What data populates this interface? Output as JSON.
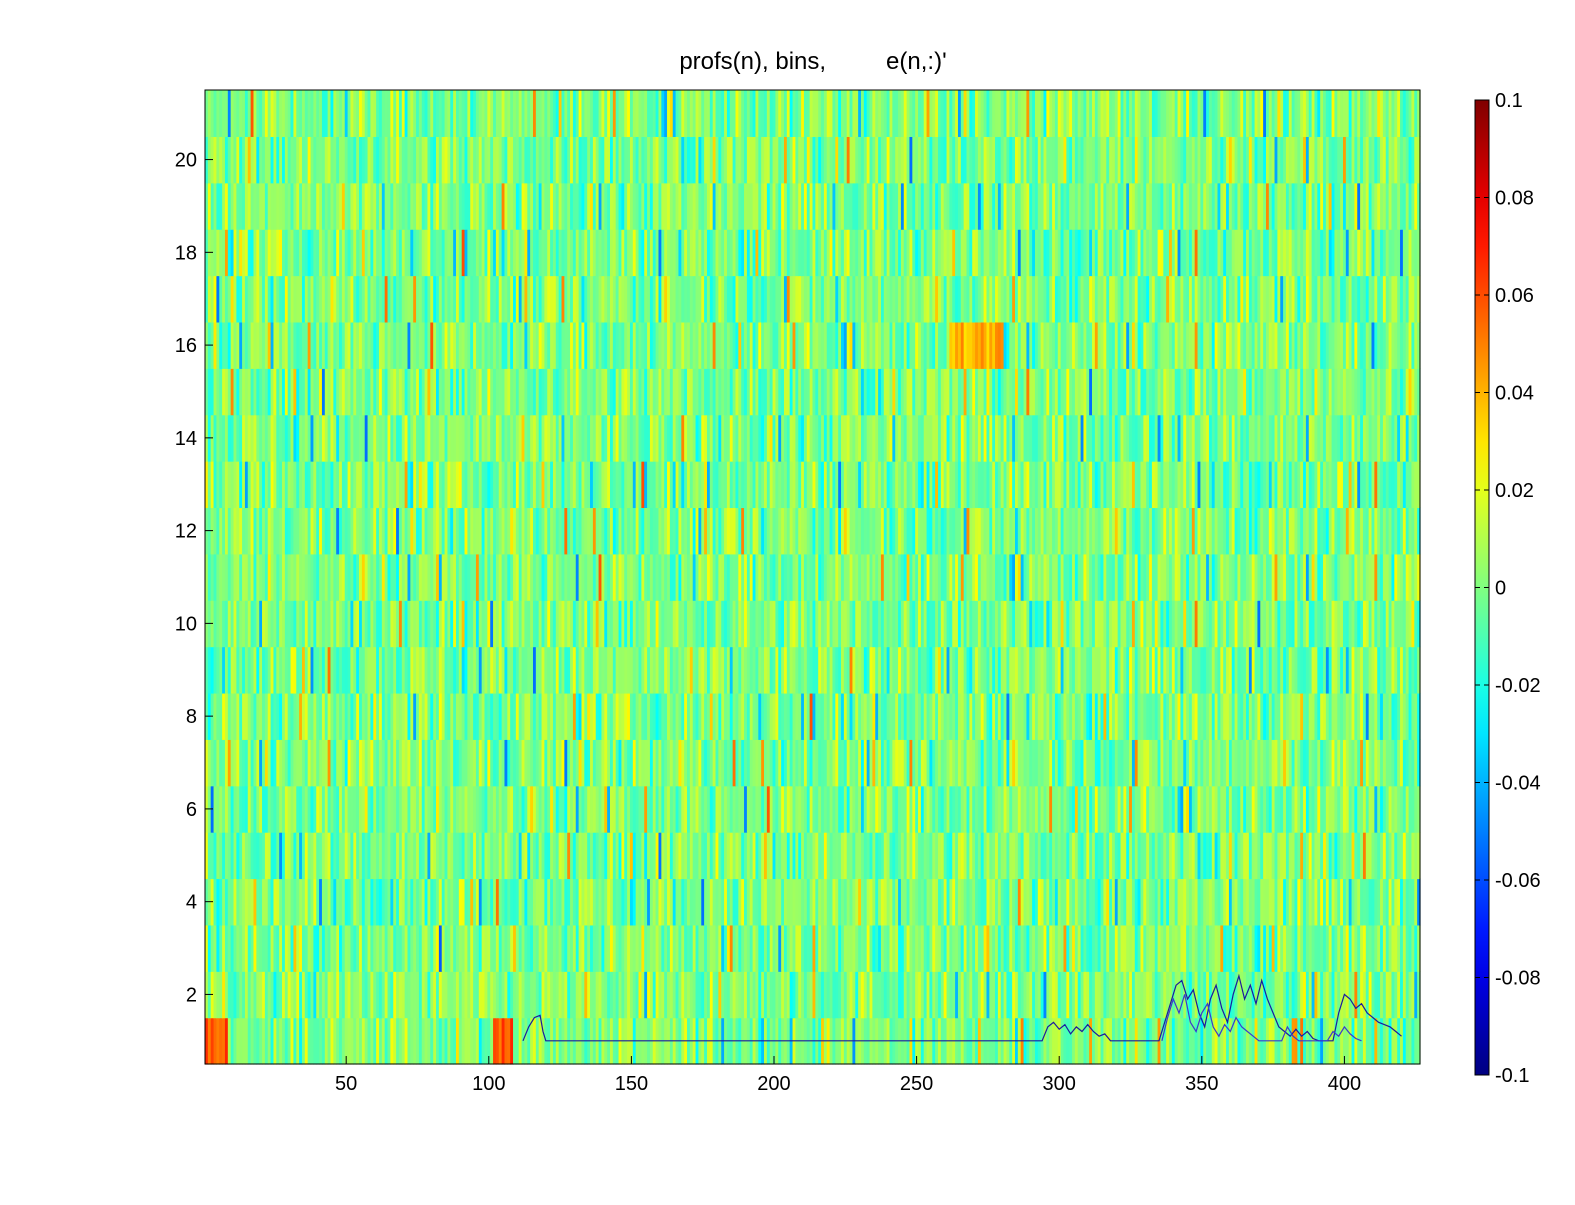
{
  "chart_data": {
    "type": "heatmap",
    "title": "profs(n), bins,         e(n,:)'",
    "xlabel": "",
    "ylabel": "",
    "xlim": [
      1,
      426
    ],
    "ylim": [
      1,
      21
    ],
    "bins": 426,
    "profiles": 21,
    "x_ticks": [
      50,
      100,
      150,
      200,
      250,
      300,
      350,
      400
    ],
    "x_tick_labels": [
      "50",
      "100",
      "150",
      "200",
      "250",
      "300",
      "350",
      "400"
    ],
    "y_ticks": [
      2,
      4,
      6,
      8,
      10,
      12,
      14,
      16,
      18,
      20
    ],
    "y_tick_labels": [
      "2",
      "4",
      "6",
      "8",
      "10",
      "12",
      "14",
      "16",
      "18",
      "20"
    ],
    "colormap": "jet",
    "clim": [
      -0.1,
      0.1
    ],
    "colorbar": {
      "ticks": [
        0.1,
        0.08,
        0.06,
        0.04,
        0.02,
        0,
        -0.02,
        -0.04,
        -0.06,
        -0.08,
        -0.1
      ],
      "tick_labels": [
        "0.1",
        "0.08",
        "0.06",
        "0.04",
        "0.02",
        "0",
        "-0.02",
        "-0.04",
        "-0.06",
        "-0.08",
        "-0.1"
      ]
    },
    "overlay_lines": [
      {
        "color": "#1a1aa0",
        "points": [
          [
            112,
            1.0
          ],
          [
            114,
            1.3
          ],
          [
            116,
            1.5
          ],
          [
            118,
            1.55
          ],
          [
            119,
            1.2
          ],
          [
            120,
            1.0
          ],
          [
            294,
            1.0
          ],
          [
            296,
            1.3
          ],
          [
            298,
            1.4
          ],
          [
            300,
            1.25
          ],
          [
            302,
            1.35
          ],
          [
            304,
            1.15
          ],
          [
            306,
            1.3
          ],
          [
            308,
            1.2
          ],
          [
            310,
            1.35
          ],
          [
            312,
            1.2
          ],
          [
            314,
            1.1
          ],
          [
            316,
            1.15
          ],
          [
            318,
            1.0
          ],
          [
            335,
            1.0
          ],
          [
            337,
            1.4
          ],
          [
            339,
            1.8
          ],
          [
            341,
            2.2
          ],
          [
            343,
            2.3
          ],
          [
            345,
            1.9
          ],
          [
            347,
            2.1
          ],
          [
            349,
            1.6
          ],
          [
            351,
            1.3
          ],
          [
            353,
            1.9
          ],
          [
            355,
            2.2
          ],
          [
            357,
            1.7
          ],
          [
            359,
            1.4
          ],
          [
            361,
            2.0
          ],
          [
            363,
            2.4
          ],
          [
            365,
            1.9
          ],
          [
            367,
            2.2
          ],
          [
            369,
            1.8
          ],
          [
            371,
            2.3
          ],
          [
            373,
            1.9
          ],
          [
            375,
            1.6
          ],
          [
            377,
            1.3
          ],
          [
            379,
            1.2
          ],
          [
            381,
            1.1
          ],
          [
            383,
            1.25
          ],
          [
            385,
            1.1
          ],
          [
            387,
            1.2
          ],
          [
            389,
            1.05
          ],
          [
            391,
            1.0
          ],
          [
            396,
            1.0
          ],
          [
            398,
            1.6
          ],
          [
            400,
            2.0
          ],
          [
            402,
            1.9
          ],
          [
            404,
            1.7
          ],
          [
            406,
            1.8
          ],
          [
            408,
            1.6
          ],
          [
            410,
            1.5
          ],
          [
            412,
            1.4
          ],
          [
            414,
            1.35
          ],
          [
            416,
            1.3
          ],
          [
            418,
            1.2
          ],
          [
            420,
            1.1
          ]
        ]
      },
      {
        "color": "#3a3ad0",
        "points": [
          [
            336,
            1.0
          ],
          [
            338,
            1.5
          ],
          [
            340,
            1.9
          ],
          [
            342,
            1.6
          ],
          [
            344,
            2.0
          ],
          [
            346,
            1.4
          ],
          [
            348,
            1.2
          ],
          [
            350,
            1.6
          ],
          [
            352,
            1.8
          ],
          [
            354,
            1.3
          ],
          [
            356,
            1.1
          ],
          [
            358,
            1.35
          ],
          [
            360,
            1.2
          ],
          [
            362,
            1.5
          ],
          [
            364,
            1.3
          ],
          [
            366,
            1.2
          ],
          [
            368,
            1.1
          ],
          [
            370,
            1.0
          ],
          [
            378,
            1.0
          ],
          [
            380,
            1.3
          ],
          [
            382,
            1.1
          ],
          [
            384,
            1.0
          ],
          [
            394,
            1.0
          ],
          [
            396,
            1.2
          ],
          [
            398,
            1.1
          ],
          [
            400,
            1.3
          ],
          [
            402,
            1.15
          ],
          [
            404,
            1.05
          ],
          [
            406,
            1.0
          ]
        ]
      }
    ]
  }
}
